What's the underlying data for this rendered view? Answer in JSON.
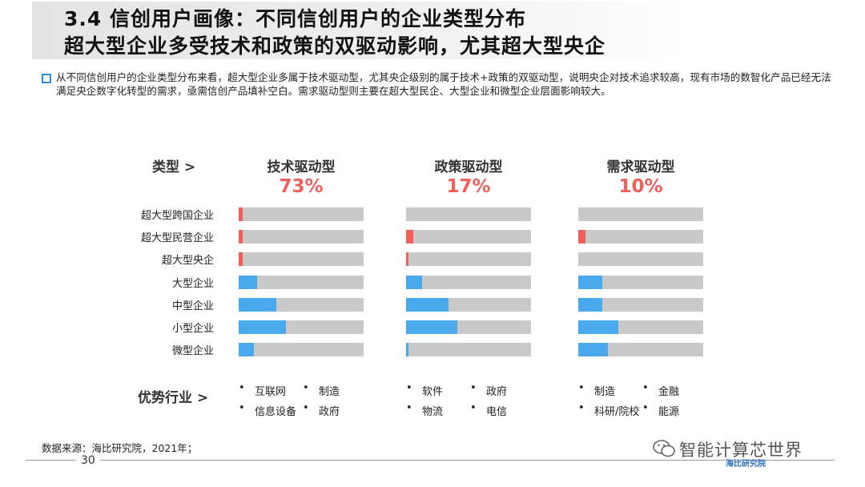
{
  "title": {
    "line1": "3.4 信创用户画像：不同信创用户的企业类型分布",
    "line2": "超大型企业多受技术和政策的双驱动影响，尤其超大型央企"
  },
  "description": "从不同信创用户的企业类型分布来看，超大型企业多属于技术驱动型，尤其央企级别的属于技术+政策的双驱动型，说明央企对技术追求较高，现有市场的数智化产品已经无法满足央企数字化转型的需求，亟需信创产品填补空白。需求驱动型则主要在超大型民企、大型企业和微型企业层面影响较大。",
  "type_label": "类型 >",
  "industry_label": "优势行业 >",
  "colors": {
    "accent": "#f0605a",
    "bar": "#4aa8ec",
    "track": "#c9c9c9",
    "title_shade": "#e6e6e6",
    "bullet": "#2e8fd8"
  },
  "chart_data": {
    "type": "bar",
    "orientation": "horizontal",
    "value_unit": "%",
    "xlim": [
      0,
      100
    ],
    "categories": [
      "超大型跨国企业",
      "超大型民营企业",
      "超大型央企",
      "大型企业",
      "中型企业",
      "小型企业",
      "微型企业"
    ],
    "panels": [
      {
        "name": "技术驱动型",
        "share": "73%",
        "values": [
          3,
          3,
          3,
          15,
          30,
          38,
          12
        ],
        "highlight_categories": [
          0,
          1,
          2
        ],
        "industries": [
          "互联网",
          "制造",
          "信息设备",
          "政府"
        ]
      },
      {
        "name": "政策驱动型",
        "share": "17%",
        "values": [
          0,
          6,
          2,
          13,
          34,
          41,
          2
        ],
        "highlight_categories": [
          0,
          1,
          2
        ],
        "industries": [
          "软件",
          "政府",
          "物流",
          "电信"
        ]
      },
      {
        "name": "需求驱动型",
        "share": "10%",
        "values": [
          0,
          6,
          0,
          19,
          19,
          32,
          24
        ],
        "highlight_categories": [
          0,
          1,
          2
        ],
        "industries": [
          "制造",
          "金融",
          "科研/院校",
          "能源"
        ]
      }
    ]
  },
  "source": "数据来源：海比研究院，2021年；",
  "page_number": "30",
  "watermark": {
    "brand": "智能计算芯世界",
    "badge": "海比研究院",
    "icon": "wechat-icon"
  }
}
